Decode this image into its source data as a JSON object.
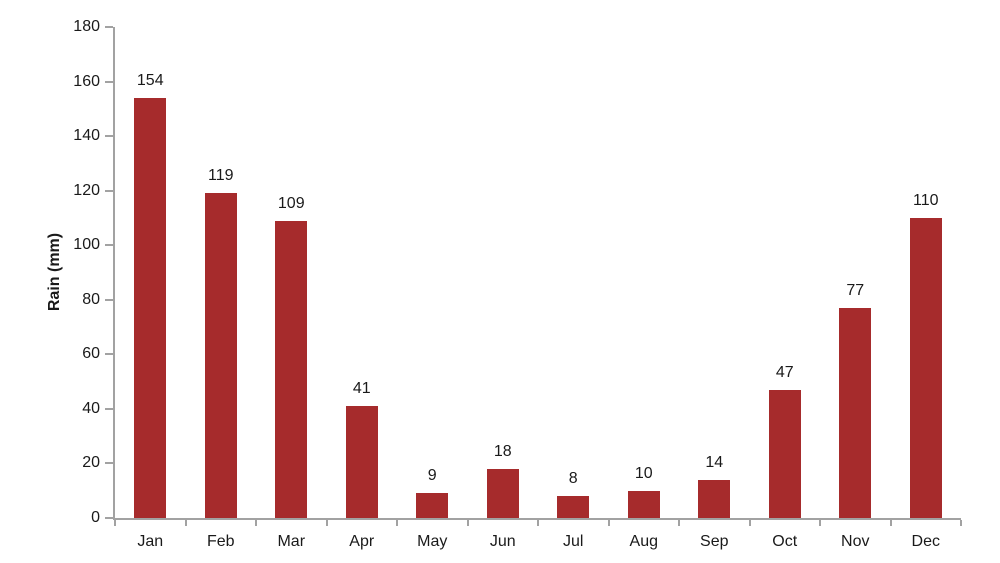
{
  "chart_data": {
    "type": "bar",
    "categories": [
      "Jan",
      "Feb",
      "Mar",
      "Apr",
      "May",
      "Jun",
      "Jul",
      "Aug",
      "Sep",
      "Oct",
      "Nov",
      "Dec"
    ],
    "values": [
      154,
      119,
      109,
      41,
      9,
      18,
      8,
      10,
      14,
      47,
      77,
      110
    ],
    "title": "",
    "xlabel": "",
    "ylabel": "Rain (mm)",
    "ylim": [
      0,
      180
    ],
    "ytick_step": 20,
    "yticks": [
      0,
      20,
      40,
      60,
      80,
      100,
      120,
      140,
      160,
      180
    ],
    "data_labels_shown": true,
    "grid": false,
    "legend": false,
    "colors": {
      "bar": "#A62B2C",
      "axis": "#A2A2A2",
      "text": "#1A1A1A",
      "background": "#FFFFFF"
    }
  }
}
